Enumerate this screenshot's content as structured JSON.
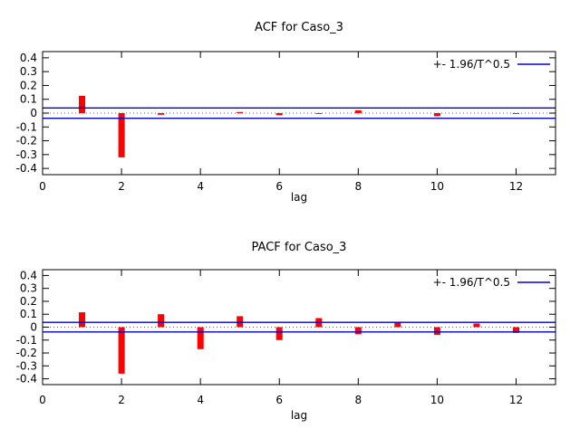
{
  "figure": {
    "background": "#ffffff",
    "description": "ACF and PACF correlogram panels for series Caso_3"
  },
  "chart_data": [
    {
      "type": "bar",
      "title": "ACF for Caso_3",
      "xlabel": "lag",
      "legend_label": "+- 1.96/T^0.5",
      "legend_position": "top-right",
      "grid": false,
      "x": [
        1,
        2,
        3,
        4,
        5,
        6,
        7,
        8,
        9,
        10,
        11,
        12,
        13
      ],
      "values": [
        0.125,
        -0.32,
        -0.012,
        0,
        0.008,
        -0.015,
        -0.004,
        0.02,
        0,
        -0.022,
        0,
        -0.006,
        0
      ],
      "confidence_band": 0.037,
      "xlim": [
        0,
        13
      ],
      "ylim": [
        -0.445,
        0.445
      ],
      "xticks": [
        0,
        2,
        4,
        6,
        8,
        10,
        12
      ],
      "xtick_labels": [
        "0",
        "2",
        "4",
        "6",
        "8",
        "10",
        "12"
      ],
      "yticks": [
        -0.4,
        -0.3,
        -0.2,
        -0.1,
        0,
        0.1,
        0.2,
        0.3,
        0.4
      ],
      "ytick_labels": [
        "-0.4",
        "-0.3",
        "-0.2",
        "-0.1",
        "0",
        "0.1",
        "0.2",
        "0.3",
        "0.4"
      ],
      "colors": {
        "bar": "#ff0000",
        "band": "#0000d0",
        "zero_line": "#666666",
        "axis": "#000000",
        "text": "#000000"
      }
    },
    {
      "type": "bar",
      "title": "PACF for Caso_3",
      "xlabel": "lag",
      "legend_label": "+- 1.96/T^0.5",
      "legend_position": "top-right",
      "grid": false,
      "x": [
        1,
        2,
        3,
        4,
        5,
        6,
        7,
        8,
        9,
        10,
        11,
        12,
        13
      ],
      "values": [
        0.115,
        -0.36,
        0.1,
        -0.17,
        0.085,
        -0.1,
        0.07,
        -0.055,
        0.035,
        -0.06,
        0.028,
        -0.045,
        0
      ],
      "confidence_band": 0.037,
      "xlim": [
        0,
        13
      ],
      "ylim": [
        -0.445,
        0.445
      ],
      "xticks": [
        0,
        2,
        4,
        6,
        8,
        10,
        12
      ],
      "xtick_labels": [
        "0",
        "2",
        "4",
        "6",
        "8",
        "10",
        "12"
      ],
      "yticks": [
        -0.4,
        -0.3,
        -0.2,
        -0.1,
        0,
        0.1,
        0.2,
        0.3,
        0.4
      ],
      "ytick_labels": [
        "-0.4",
        "-0.3",
        "-0.2",
        "-0.1",
        "0",
        "0.1",
        "0.2",
        "0.3",
        "0.4"
      ],
      "colors": {
        "bar": "#ff0000",
        "band": "#0000d0",
        "zero_line": "#666666",
        "axis": "#000000",
        "text": "#000000"
      }
    }
  ]
}
